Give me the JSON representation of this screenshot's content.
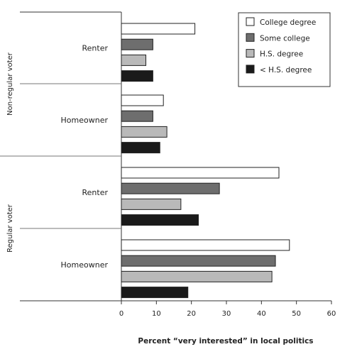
{
  "chart_data": {
    "type": "bar",
    "orientation": "horizontal",
    "xlabel": "Percent “very interested” in local politics",
    "xlim": [
      0,
      60
    ],
    "xticks": [
      "0",
      "10",
      "20",
      "30",
      "40",
      "50",
      "60"
    ],
    "grid": false,
    "legend_position": "top-right",
    "groups": [
      {
        "label": "Non-regular voter",
        "categories": [
          {
            "label": "Renter",
            "values": [
              21,
              9,
              7,
              9
            ]
          },
          {
            "label": "Homeowner",
            "values": [
              12,
              9,
              13,
              11
            ]
          }
        ]
      },
      {
        "label": "Regular voter",
        "categories": [
          {
            "label": "Renter",
            "values": [
              45,
              28,
              17,
              22
            ]
          },
          {
            "label": "Homeowner",
            "values": [
              48,
              44,
              43,
              19
            ]
          }
        ]
      }
    ],
    "series": [
      {
        "name": "College degree",
        "color": "#ffffff"
      },
      {
        "name": "Some college",
        "color": "#6e6e6e"
      },
      {
        "name": "H.S. degree",
        "color": "#b9b9b9"
      },
      {
        "name": "< H.S. degree",
        "color": "#1a1a1a"
      }
    ]
  }
}
